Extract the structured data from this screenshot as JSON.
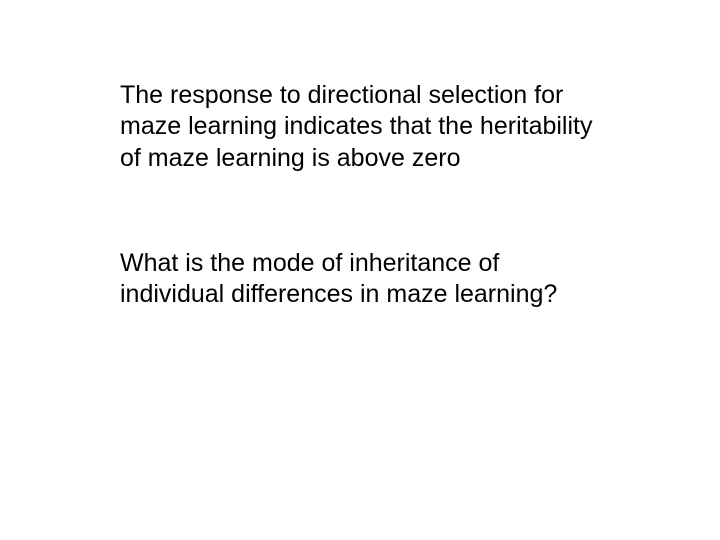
{
  "slide": {
    "background_color": "#ffffff",
    "text_color": "#000000",
    "font_family": "Comic Sans MS",
    "font_size_pt": 25,
    "paragraphs": {
      "p1": "The response to directional selection for maze learning indicates that the heritability of maze learning is above zero",
      "p2": "What is the mode of inheritance of individual differences in maze learning?"
    }
  }
}
